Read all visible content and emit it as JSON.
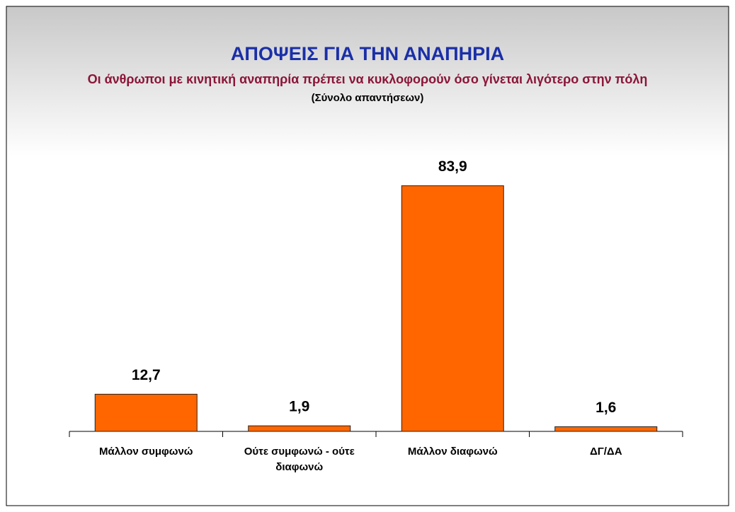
{
  "chart_data": {
    "type": "bar",
    "title": "ΑΠΟΨΕΙΣ ΓΙΑ ΤΗΝ ΑΝΑΠΗΡΙΑ",
    "subtitle": "Οι άνθρωποι με κινητική αναπηρία πρέπει να κυκλοφορούν όσο γίνεται λιγότερο στην πόλη",
    "note": "(Σύνολο απαντήσεων)",
    "categories": [
      "Μάλλον συμφωνώ",
      "Ούτε συμφωνώ - ούτε διαφωνώ",
      "Μάλλον διαφωνώ",
      "ΔΓ/ΔΑ"
    ],
    "values": [
      12.7,
      1.9,
      83.9,
      1.6
    ],
    "value_labels": [
      "12,7",
      "1,9",
      "83,9",
      "1,6"
    ],
    "color": "#ff6600",
    "ylim": [
      0,
      100
    ]
  }
}
